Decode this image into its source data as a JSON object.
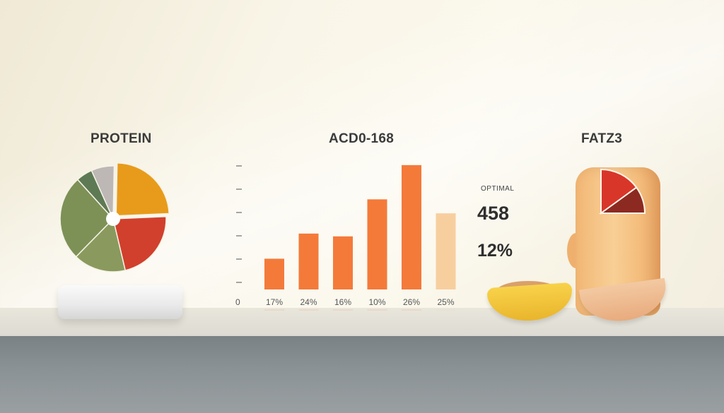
{
  "headings": {
    "protein": "PROTEIN",
    "acd": "ACD0-168",
    "fatz": "FATZ3"
  },
  "stats": {
    "label": "OPTIMAL",
    "value": "458",
    "percent": "12%"
  },
  "colors": {
    "bar": "#f47a3a",
    "bar_light": "#f7cf9f",
    "pie_orange": "#e89b1a",
    "pie_red": "#d1402c",
    "pie_olive": "#7d9157",
    "pie_olive_light": "#8a9a5e",
    "pie_green": "#5e7a55",
    "pie_gray": "#bdb7b5",
    "jar_red": "#d9362a",
    "jar_darkred": "#8c2a22"
  },
  "chart_data": [
    {
      "type": "pie",
      "title": "PROTEIN",
      "slices": [
        {
          "value": 24,
          "color": "#e89b1a"
        },
        {
          "value": 22,
          "color": "#d1402c"
        },
        {
          "value": 16,
          "color": "#8a9a5e"
        },
        {
          "value": 26,
          "color": "#7d9157"
        },
        {
          "value": 5,
          "color": "#5e7a55"
        },
        {
          "value": 7,
          "color": "#bdb7b5"
        }
      ]
    },
    {
      "type": "bar",
      "title": "ACD0-168",
      "axis_zero_label": "0",
      "categories": [
        "17%",
        "24%",
        "16%",
        "10%",
        "26%",
        "25%"
      ],
      "values": [
        44,
        80,
        76,
        129,
        178,
        109
      ],
      "highlight": [
        false,
        false,
        false,
        false,
        false,
        true
      ],
      "ylim": [
        0,
        190
      ]
    },
    {
      "type": "pie",
      "title": "FATZ3",
      "slices": [
        {
          "value": 60,
          "color": "#d9362a"
        },
        {
          "value": 40,
          "color": "#8c2a22"
        }
      ]
    }
  ]
}
